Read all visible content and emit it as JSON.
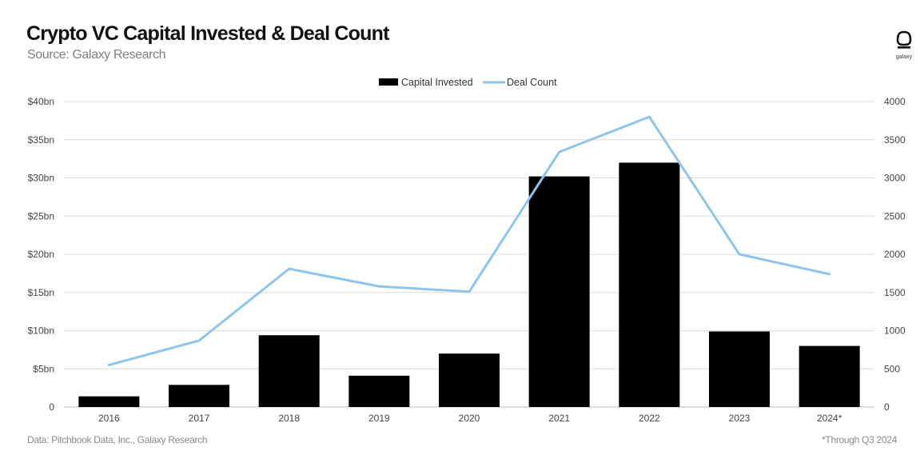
{
  "header": {
    "title": "Crypto VC Capital Invested & Deal Count",
    "subtitle": "Source: Galaxy Research",
    "logo_text": "galaxy"
  },
  "footer": {
    "left": "Data: Pitchbook Data, Inc., Galaxy Research",
    "right": "*Through Q3 2024"
  },
  "colors": {
    "bars": "#000000",
    "line": "#8ec5ee",
    "grid": "#dcdcdc"
  },
  "chart_data": {
    "type": "bar",
    "title": "Crypto VC Capital Invested & Deal Count",
    "categories": [
      "2016",
      "2017",
      "2018",
      "2019",
      "2020",
      "2021",
      "2022",
      "2023",
      "2024*"
    ],
    "series": [
      {
        "name": "Capital Invested",
        "type": "bar",
        "axis": "left",
        "values": [
          1.4,
          2.9,
          9.4,
          4.1,
          7.0,
          30.2,
          32.0,
          9.9,
          8.0
        ]
      },
      {
        "name": "Deal Count",
        "type": "line",
        "axis": "right",
        "values": [
          550,
          870,
          1810,
          1580,
          1510,
          3340,
          3800,
          2000,
          1740
        ]
      }
    ],
    "left_axis": {
      "ylim": [
        0,
        40
      ],
      "tick_labels": [
        "0",
        "$5bn",
        "$10bn",
        "$15bn",
        "$20bn",
        "$25bn",
        "$30bn",
        "$35bn",
        "$40bn"
      ]
    },
    "right_axis": {
      "ylim": [
        0,
        4000
      ],
      "tick_labels": [
        "0",
        "500",
        "1000",
        "1500",
        "2000",
        "2500",
        "3000",
        "3500",
        "4000"
      ]
    },
    "legend_position": "top-center",
    "grid": true
  }
}
